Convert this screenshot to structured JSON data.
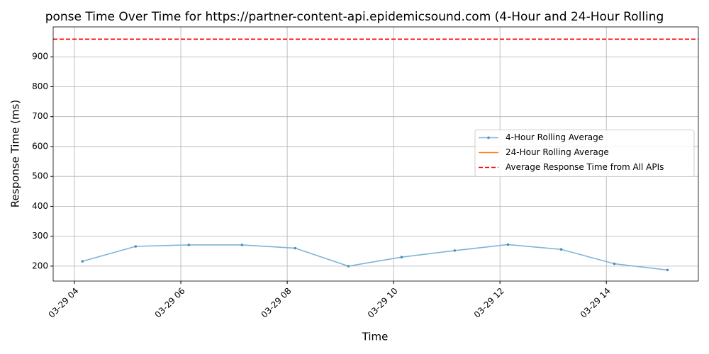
{
  "chart_data": {
    "type": "line",
    "title": "ponse Time Over Time for https://partner-content-api.epidemicsound.com (4-Hour and 24-Hour Rolling",
    "x_label": "Time",
    "y_label": "Response Time (ms)",
    "x": [
      4.15,
      5.15,
      6.15,
      7.15,
      8.15,
      9.15,
      10.15,
      11.15,
      12.15,
      13.15,
      14.15,
      15.15
    ],
    "series": [
      {
        "name": "4-Hour Rolling Average",
        "color": "#7fb3d5",
        "values": [
          216,
          266,
          271,
          271,
          260,
          200,
          230,
          252,
          272,
          256,
          208,
          187
        ]
      },
      {
        "name": "24-Hour Rolling Average",
        "color": "#ff7f0e",
        "values": [
          null,
          null,
          null,
          null,
          null,
          null,
          null,
          null,
          null,
          null,
          null,
          null
        ]
      }
    ],
    "reference_line": {
      "name": "Average Response Time from All APIs",
      "value": 959,
      "color": "#ff0000"
    },
    "xlim": [
      3.6,
      15.73
    ],
    "xticks": [
      {
        "value": 4,
        "label": "03-29 04"
      },
      {
        "value": 6,
        "label": "03-29 06"
      },
      {
        "value": 8,
        "label": "03-29 08"
      },
      {
        "value": 10,
        "label": "03-29 10"
      },
      {
        "value": 12,
        "label": "03-29 12"
      },
      {
        "value": 14,
        "label": "03-29 14"
      }
    ],
    "ylim": [
      150,
      1000
    ],
    "yticks": [
      200,
      300,
      400,
      500,
      600,
      700,
      800,
      900
    ],
    "grid": true,
    "legend": "center right"
  }
}
